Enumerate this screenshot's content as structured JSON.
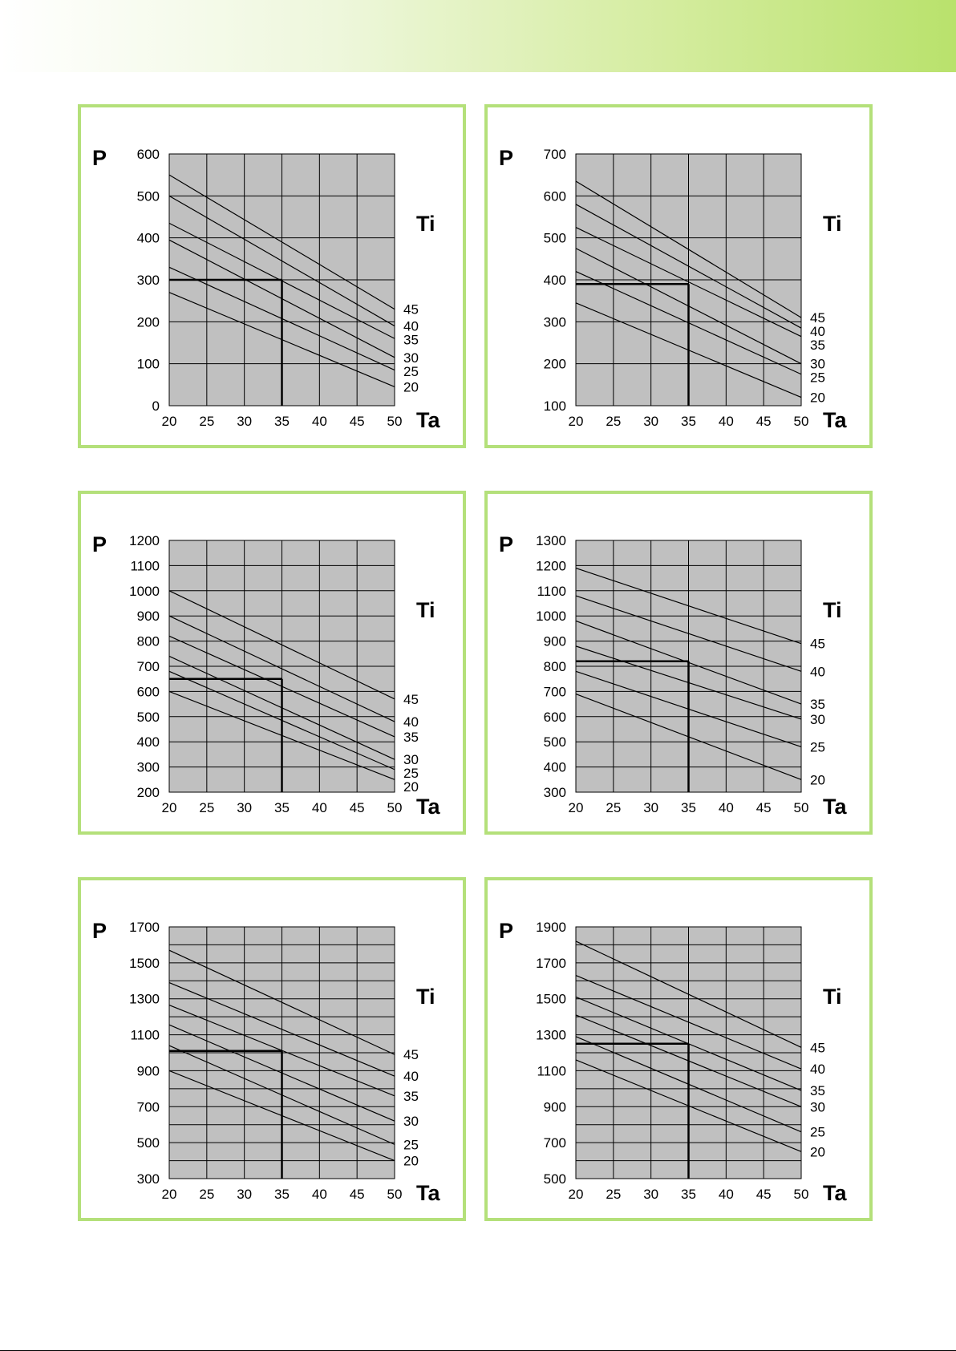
{
  "colors": {
    "header_gradient_end": "#b9e26c",
    "panel_border": "#b4e07a",
    "plot_background": "#c0c0c0"
  },
  "chart_data": [
    {
      "type": "line",
      "ylabel": "P",
      "xlabel": "Ta",
      "legend_title": "Ti",
      "xlim": [
        20,
        50
      ],
      "ylim": [
        0,
        600
      ],
      "x_ticks": [
        "20",
        "25",
        "30",
        "35",
        "40",
        "45",
        "50"
      ],
      "y_ticks": [
        "0",
        "100",
        "200",
        "300",
        "400",
        "500",
        "600"
      ],
      "series": [
        {
          "name": "45",
          "x": [
            20,
            50
          ],
          "y": [
            550,
            230
          ]
        },
        {
          "name": "40",
          "x": [
            20,
            50
          ],
          "y": [
            500,
            190
          ]
        },
        {
          "name": "35",
          "x": [
            20,
            50
          ],
          "y": [
            435,
            160
          ]
        },
        {
          "name": "30",
          "x": [
            20,
            50
          ],
          "y": [
            395,
            115
          ]
        },
        {
          "name": "25",
          "x": [
            20,
            50
          ],
          "y": [
            330,
            85
          ]
        },
        {
          "name": "20",
          "x": [
            20,
            50
          ],
          "y": [
            270,
            45
          ]
        }
      ],
      "reference": {
        "x": 35,
        "y": 300
      }
    },
    {
      "type": "line",
      "ylabel": "P",
      "xlabel": "Ta",
      "legend_title": "Ti",
      "xlim": [
        20,
        50
      ],
      "ylim": [
        100,
        700
      ],
      "x_ticks": [
        "20",
        "25",
        "30",
        "35",
        "40",
        "45",
        "50"
      ],
      "y_ticks": [
        "100",
        "200",
        "300",
        "400",
        "500",
        "600",
        "700"
      ],
      "series": [
        {
          "name": "45",
          "x": [
            20,
            50
          ],
          "y": [
            635,
            310
          ]
        },
        {
          "name": "40",
          "x": [
            20,
            50
          ],
          "y": [
            580,
            285
          ]
        },
        {
          "name": "35",
          "x": [
            20,
            50
          ],
          "y": [
            525,
            265
          ]
        },
        {
          "name": "30",
          "x": [
            20,
            50
          ],
          "y": [
            475,
            200
          ]
        },
        {
          "name": "25",
          "x": [
            20,
            50
          ],
          "y": [
            420,
            175
          ]
        },
        {
          "name": "20",
          "x": [
            20,
            50
          ],
          "y": [
            345,
            120
          ]
        }
      ],
      "reference": {
        "x": 35,
        "y": 390
      }
    },
    {
      "type": "line",
      "ylabel": "P",
      "xlabel": "Ta",
      "legend_title": "Ti",
      "xlim": [
        20,
        50
      ],
      "ylim": [
        200,
        1200
      ],
      "x_ticks": [
        "20",
        "25",
        "30",
        "35",
        "40",
        "45",
        "50"
      ],
      "y_ticks": [
        "200",
        "300",
        "400",
        "500",
        "600",
        "700",
        "800",
        "900",
        "1000",
        "1100",
        "1200"
      ],
      "series": [
        {
          "name": "45",
          "x": [
            20,
            50
          ],
          "y": [
            1000,
            570
          ]
        },
        {
          "name": "40",
          "x": [
            20,
            50
          ],
          "y": [
            900,
            480
          ]
        },
        {
          "name": "35",
          "x": [
            20,
            50
          ],
          "y": [
            820,
            420
          ]
        },
        {
          "name": "30",
          "x": [
            20,
            50
          ],
          "y": [
            740,
            330
          ]
        },
        {
          "name": "25",
          "x": [
            20,
            50
          ],
          "y": [
            680,
            290
          ]
        },
        {
          "name": "20",
          "x": [
            20,
            50
          ],
          "y": [
            600,
            250
          ]
        }
      ],
      "reference": {
        "x": 35,
        "y": 650
      }
    },
    {
      "type": "line",
      "ylabel": "P",
      "xlabel": "Ta",
      "legend_title": "Ti",
      "xlim": [
        20,
        50
      ],
      "ylim": [
        300,
        1300
      ],
      "x_ticks": [
        "20",
        "25",
        "30",
        "35",
        "40",
        "45",
        "50"
      ],
      "y_ticks": [
        "300",
        "400",
        "500",
        "600",
        "700",
        "800",
        "900",
        "1000",
        "1100",
        "1200",
        "1300"
      ],
      "series": [
        {
          "name": "45",
          "x": [
            20,
            50
          ],
          "y": [
            1190,
            890
          ]
        },
        {
          "name": "40",
          "x": [
            20,
            50
          ],
          "y": [
            1080,
            780
          ]
        },
        {
          "name": "35",
          "x": [
            20,
            50
          ],
          "y": [
            980,
            650
          ]
        },
        {
          "name": "30",
          "x": [
            20,
            50
          ],
          "y": [
            880,
            590
          ]
        },
        {
          "name": "25",
          "x": [
            20,
            50
          ],
          "y": [
            780,
            480
          ]
        },
        {
          "name": "20",
          "x": [
            20,
            50
          ],
          "y": [
            690,
            350
          ]
        }
      ],
      "reference": {
        "x": 35,
        "y": 820
      }
    },
    {
      "type": "line",
      "ylabel": "P",
      "xlabel": "Ta",
      "legend_title": "Ti",
      "xlim": [
        20,
        50
      ],
      "ylim": [
        300,
        1700
      ],
      "x_ticks": [
        "20",
        "25",
        "30",
        "35",
        "40",
        "45",
        "50"
      ],
      "y_ticks": [
        "300",
        "500",
        "700",
        "900",
        "1100",
        "1300",
        "1500",
        "1700"
      ],
      "series": [
        {
          "name": "45",
          "x": [
            20,
            50
          ],
          "y": [
            1570,
            990
          ]
        },
        {
          "name": "40",
          "x": [
            20,
            50
          ],
          "y": [
            1390,
            870
          ]
        },
        {
          "name": "35",
          "x": [
            20,
            50
          ],
          "y": [
            1265,
            760
          ]
        },
        {
          "name": "30",
          "x": [
            20,
            50
          ],
          "y": [
            1155,
            620
          ]
        },
        {
          "name": "25",
          "x": [
            20,
            50
          ],
          "y": [
            1040,
            490
          ]
        },
        {
          "name": "20",
          "x": [
            20,
            50
          ],
          "y": [
            900,
            400
          ]
        }
      ],
      "reference": {
        "x": 35,
        "y": 1010
      }
    },
    {
      "type": "line",
      "ylabel": "P",
      "xlabel": "Ta",
      "legend_title": "Ti",
      "xlim": [
        20,
        50
      ],
      "ylim": [
        500,
        1900
      ],
      "x_ticks": [
        "20",
        "25",
        "30",
        "35",
        "40",
        "45",
        "50"
      ],
      "y_ticks": [
        "500",
        "700",
        "900",
        "1100",
        "1300",
        "1500",
        "1700",
        "1900"
      ],
      "series": [
        {
          "name": "45",
          "x": [
            20,
            50
          ],
          "y": [
            1820,
            1230
          ]
        },
        {
          "name": "40",
          "x": [
            20,
            50
          ],
          "y": [
            1630,
            1110
          ]
        },
        {
          "name": "35",
          "x": [
            20,
            50
          ],
          "y": [
            1510,
            990
          ]
        },
        {
          "name": "30",
          "x": [
            20,
            50
          ],
          "y": [
            1410,
            900
          ]
        },
        {
          "name": "25",
          "x": [
            20,
            50
          ],
          "y": [
            1290,
            760
          ]
        },
        {
          "name": "20",
          "x": [
            20,
            50
          ],
          "y": [
            1160,
            650
          ]
        }
      ],
      "reference": {
        "x": 35,
        "y": 1250
      }
    }
  ]
}
